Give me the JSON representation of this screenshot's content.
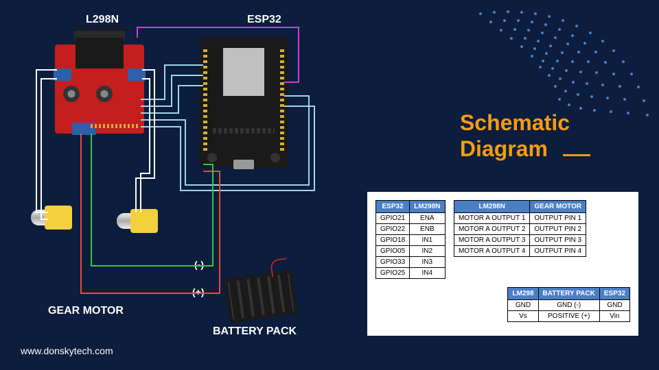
{
  "background_color": "#0c1d3d",
  "title": "Schematic\nDiagram",
  "title_color": "#f39c12",
  "accent_color": "#f39c12",
  "labels": {
    "l298n": "L298N",
    "esp32": "ESP32",
    "gear_motor": "GEAR MOTOR",
    "battery_pack": "BATTERY PACK",
    "negative": "(-)",
    "positive": "(+)"
  },
  "website": "www.donskytech.com",
  "tables": {
    "header_bg": "#4a7fc4",
    "table1": {
      "headers": [
        "ESP32",
        "LM298N"
      ],
      "rows": [
        [
          "GPIO21",
          "ENA"
        ],
        [
          "GPIO22",
          "ENB"
        ],
        [
          "GPIO18",
          "IN1"
        ],
        [
          "GPIO05",
          "IN2"
        ],
        [
          "GPIO33",
          "IN3"
        ],
        [
          "GPIO25",
          "IN4"
        ]
      ]
    },
    "table2": {
      "headers": [
        "LM298N",
        "GEAR MOTOR"
      ],
      "rows": [
        [
          "MOTOR A OUTPUT 1",
          "OUTPUT PIN 1"
        ],
        [
          "MOTOR A OUTPUT 2",
          "OUTPUT PIN 2"
        ],
        [
          "MOTOR A OUTPUT 3",
          "OUTPUT PIN 3"
        ],
        [
          "MOTOR A OUTPUT 4",
          "OUTPUT PIN 4"
        ]
      ]
    },
    "table3": {
      "headers": [
        "LM298",
        "BATTERY PACK",
        "ESP32"
      ],
      "rows": [
        [
          "GND",
          "GND (-)",
          "GND"
        ],
        [
          "Vs",
          "POSITIVE (+)",
          "Vin"
        ]
      ]
    }
  },
  "components": {
    "l298n": {
      "board_color": "#c41e1e",
      "terminal_color": "#2e5fa8"
    },
    "esp32": {
      "board_color": "#1a1a1a",
      "shield_color": "#c0c0c0"
    },
    "motor": {
      "body_color": "#f4d03f"
    }
  },
  "wires": {
    "magenta": "#d63cd6",
    "cyan": "#9fd8e8",
    "white": "#ffffff",
    "green": "#2ecc40",
    "red": "#e74c3c"
  },
  "dots": {
    "color": "#4a7fc4",
    "count_per_arc": 18,
    "arcs": 12
  }
}
